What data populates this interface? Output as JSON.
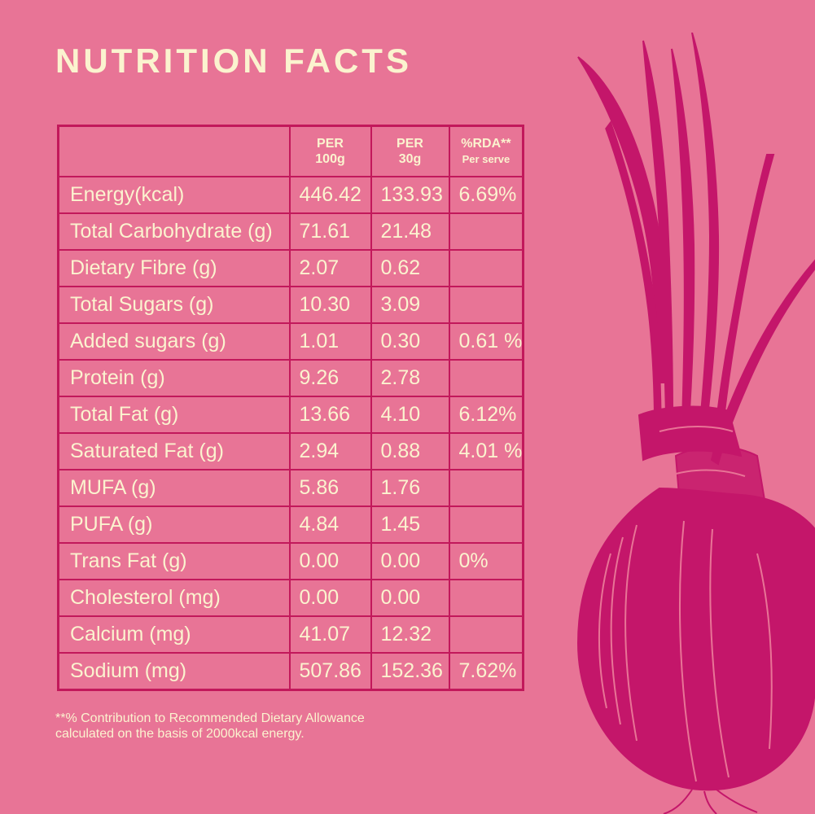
{
  "title": "NUTRITION FACTS",
  "table": {
    "headers": {
      "per100_line1": "PER",
      "per100_line2": "100g",
      "per30_line1": "PER",
      "per30_line2": "30g",
      "rda_line1": "%RDA**",
      "rda_line2": "Per serve"
    },
    "rows": [
      {
        "name": "Energy(kcal)",
        "per100": "446.42",
        "per30": "133.93",
        "rda": "6.69%"
      },
      {
        "name": "Total Carbohydrate (g)",
        "per100": "71.61",
        "per30": "21.48",
        "rda": ""
      },
      {
        "name": "Dietary Fibre (g)",
        "per100": "2.07",
        "per30": "0.62",
        "rda": ""
      },
      {
        "name": "Total Sugars (g)",
        "per100": "10.30",
        "per30": "3.09",
        "rda": ""
      },
      {
        "name": "Added sugars (g)",
        "per100": "1.01",
        "per30": "0.30",
        "rda": "0.61 %"
      },
      {
        "name": "Protein (g)",
        "per100": "9.26",
        "per30": "2.78",
        "rda": ""
      },
      {
        "name": "Total Fat (g)",
        "per100": "13.66",
        "per30": "4.10",
        "rda": "6.12%"
      },
      {
        "name": "Saturated Fat (g)",
        "per100": "2.94",
        "per30": "0.88",
        "rda": "4.01 %"
      },
      {
        "name": "MUFA (g)",
        "per100": "5.86",
        "per30": "1.76",
        "rda": ""
      },
      {
        "name": "PUFA (g)",
        "per100": "4.84",
        "per30": "1.45",
        "rda": ""
      },
      {
        "name": "Trans Fat (g)",
        "per100": "0.00",
        "per30": "0.00",
        "rda": "0%"
      },
      {
        "name": "Cholesterol (mg)",
        "per100": "0.00",
        "per30": "0.00",
        "rda": ""
      },
      {
        "name": "Calcium (mg)",
        "per100": "41.07",
        "per30": "12.32",
        "rda": ""
      },
      {
        "name": "Sodium (mg)",
        "per100": "507.86",
        "per30": "152.36",
        "rda": "7.62%"
      }
    ]
  },
  "footnote_line1": "**% Contribution to Recommended Dietary Allowance",
  "footnote_line2": "calculated on the basis of 2000kcal energy.",
  "colors": {
    "background": "#e87496",
    "text": "#fbf3cf",
    "border": "#c2185b",
    "illustration": "#c4166a"
  },
  "illustration": "onion-illustration"
}
